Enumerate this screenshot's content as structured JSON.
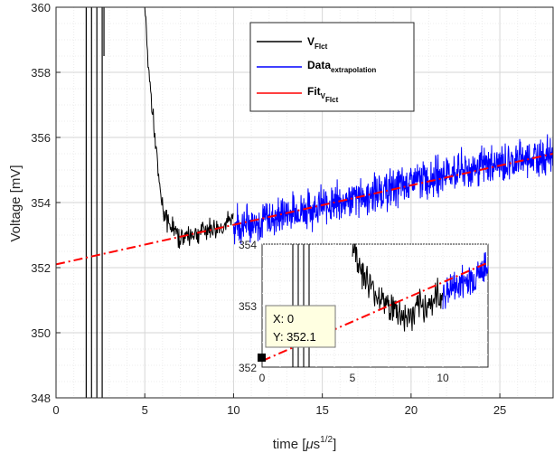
{
  "chart_data": {
    "type": "line",
    "xlabel_main": "time [",
    "xlabel_mu": "μ",
    "xlabel_s": "s",
    "xlabel_exp": "1/2",
    "xlabel_close": "]",
    "ylabel": "Voltage [mV]",
    "xlim": [
      0,
      28
    ],
    "ylim": [
      348,
      360
    ],
    "x_ticks": [
      "0",
      "5",
      "10",
      "15",
      "20",
      "25"
    ],
    "y_ticks": [
      "348",
      "350",
      "352",
      "354",
      "356",
      "358",
      "360"
    ],
    "grid": "on (major and minor)",
    "legend_placement": "top-center",
    "legend": [
      {
        "name": "V",
        "sub": "Flct",
        "color": "#000000"
      },
      {
        "name": "Data",
        "sub": "extrapolation",
        "color": "#0000ff"
      },
      {
        "name": "Fit",
        "sub": "V",
        "subsub": "Flct",
        "color": "#ff0000"
      }
    ],
    "series": [
      {
        "id": "vflct",
        "x": [
          5.0,
          5.2,
          5.4,
          5.6,
          5.8,
          6.0,
          6.3,
          6.6,
          7.0,
          7.5,
          8.0,
          8.5,
          9.0,
          9.5,
          10.0
        ],
        "y": [
          360.0,
          358.2,
          357.0,
          355.8,
          354.6,
          353.8,
          353.4,
          353.2,
          352.9,
          353.0,
          353.1,
          353.2,
          353.2,
          353.3,
          353.5
        ]
      },
      {
        "id": "extrapolation",
        "x": [
          10.0,
          12,
          14,
          16,
          18,
          20,
          22,
          24,
          26,
          28
        ],
        "y": [
          353.3,
          353.5,
          353.8,
          354.0,
          354.3,
          354.6,
          354.9,
          355.1,
          355.3,
          355.5
        ]
      },
      {
        "id": "fit",
        "x": [
          0,
          28
        ],
        "y": [
          352.1,
          355.5
        ]
      }
    ],
    "vertical_lines_x": [
      1.7,
      2.0,
      2.3,
      2.6
    ],
    "datatip": {
      "x_label": "X: 0",
      "y_label": "Y: 352.1",
      "x": 0,
      "y": 352.1
    },
    "inset": {
      "xlim": [
        0,
        12.5
      ],
      "ylim": [
        352,
        354
      ],
      "x_ticks": [
        "0",
        "5",
        "10"
      ],
      "y_ticks": [
        "352",
        "353",
        "354"
      ]
    }
  }
}
